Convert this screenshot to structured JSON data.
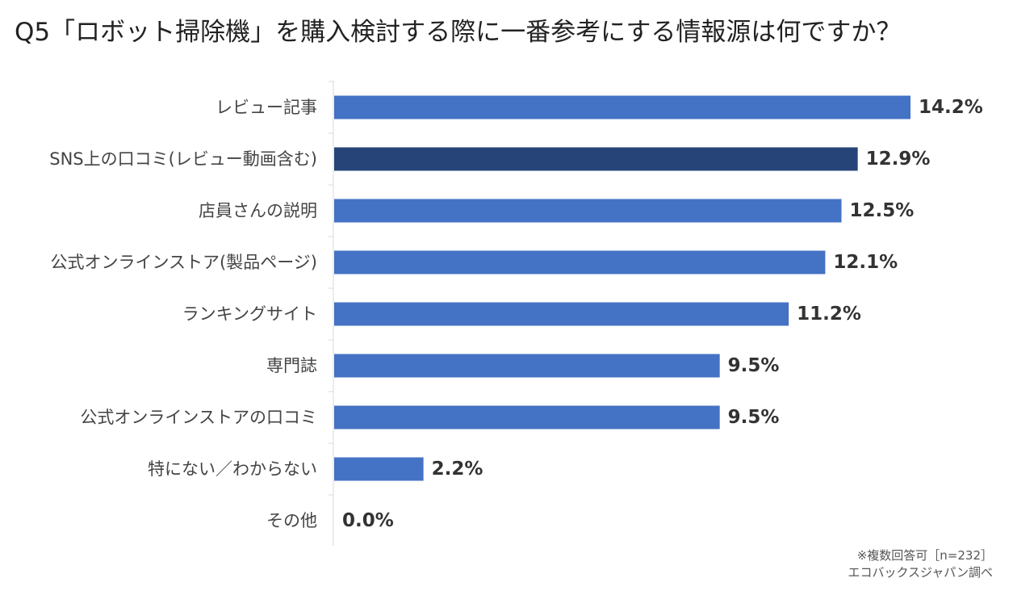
{
  "chart_data": {
    "type": "bar",
    "orientation": "horizontal",
    "title": "Q5「ロボット掃除機」を購入検討する際に一番参考にする情報源は何ですか？",
    "categories": [
      "レビュー記事",
      "SNS上の口コミ(レビュー動画含む)",
      "店員さんの説明",
      "公式オンラインストア(製品ページ)",
      "ランキングサイト",
      "専門誌",
      "公式オンラインストアの口コミ",
      "特にない／わからない",
      "その他"
    ],
    "values": [
      14.2,
      12.9,
      12.5,
      12.1,
      11.2,
      9.5,
      9.5,
      2.2,
      0.0
    ],
    "value_labels": [
      "14.2%",
      "12.9%",
      "12.5%",
      "12.1%",
      "11.2%",
      "9.5%",
      "9.5%",
      "2.2%",
      "0.0%"
    ],
    "unit": "%",
    "xlim": [
      0,
      16
    ],
    "grid": false,
    "bar_color": "#4472C4",
    "highlight_color": "#264478",
    "highlight_index": 1
  },
  "footnote": {
    "line1": "※複数回答可［n=232］",
    "line2": "エコバックスジャパン調べ"
  }
}
